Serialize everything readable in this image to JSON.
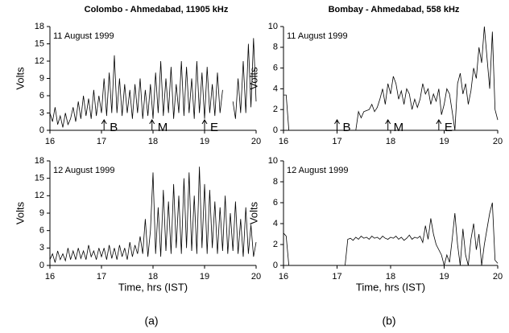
{
  "chart_data": [
    {
      "type": "line",
      "title": "Colombo - Ahmedabad, 11905 kHz",
      "annotation": "11 August 1999",
      "ylabel": "Volts",
      "color": "#000000",
      "markers": [
        {
          "label": "B",
          "x": 17.05
        },
        {
          "label": "M",
          "x": 17.98
        },
        {
          "label": "E",
          "x": 19.0
        }
      ],
      "x": [
        16,
        16.05,
        16.1,
        16.15,
        16.2,
        16.25,
        16.3,
        16.35,
        16.4,
        16.45,
        16.5,
        16.55,
        16.6,
        16.65,
        16.7,
        16.75,
        16.8,
        16.85,
        16.9,
        16.95,
        17,
        17.05,
        17.1,
        17.15,
        17.2,
        17.25,
        17.3,
        17.35,
        17.4,
        17.45,
        17.5,
        17.55,
        17.6,
        17.65,
        17.7,
        17.75,
        17.8,
        17.85,
        17.9,
        17.95,
        18,
        18.05,
        18.1,
        18.15,
        18.2,
        18.25,
        18.3,
        18.35,
        18.4,
        18.45,
        18.5,
        18.55,
        18.6,
        18.65,
        18.7,
        18.75,
        18.8,
        18.85,
        18.9,
        18.95,
        19,
        19.05,
        19.1,
        19.15,
        19.2,
        19.25,
        19.3,
        19.35,
        19.4,
        19.45,
        19.5,
        19.55,
        19.6,
        19.65,
        19.7,
        19.75,
        19.8,
        19.85,
        19.9,
        19.95,
        20
      ],
      "values": [
        3,
        1.5,
        4,
        1,
        2.5,
        0.5,
        3,
        1,
        2,
        4,
        1.5,
        5,
        2,
        6,
        2.5,
        5.5,
        2,
        7,
        2.5,
        6,
        3,
        9,
        2.5,
        10,
        3,
        13,
        3,
        9,
        2.5,
        8,
        3,
        7,
        2,
        8,
        3,
        9,
        2,
        7,
        2.5,
        8,
        2,
        10,
        3,
        12,
        2.5,
        9,
        3,
        11,
        2,
        8,
        3,
        12,
        2.5,
        11,
        3,
        9,
        2,
        12,
        3,
        10,
        2,
        11,
        3,
        8,
        2.5,
        10,
        3,
        7,
        null,
        null,
        null,
        5,
        2,
        9,
        3,
        12,
        3,
        15,
        4,
        16,
        5
      ],
      "xlim": [
        16,
        20
      ],
      "xticks": [
        16,
        17,
        18,
        19,
        20
      ],
      "ylim": [
        0,
        18
      ],
      "yticks": [
        0,
        3,
        6,
        9,
        12,
        15,
        18
      ]
    },
    {
      "type": "line",
      "title": "Bombay - Ahmedabad, 558 kHz",
      "annotation": "11 August 1999",
      "ylabel": "Volts",
      "color": "#000000",
      "markers": [
        {
          "label": "B",
          "x": 17.0
        },
        {
          "label": "M",
          "x": 17.95
        },
        {
          "label": "E",
          "x": 18.9
        }
      ],
      "x": [
        16,
        16.05,
        16.1,
        16.15,
        16.2,
        16.25,
        16.3,
        16.35,
        16.4,
        16.45,
        16.5,
        16.55,
        16.6,
        16.65,
        16.7,
        16.75,
        16.8,
        16.85,
        16.9,
        16.95,
        17,
        17.05,
        17.1,
        17.15,
        17.2,
        17.25,
        17.3,
        17.35,
        17.4,
        17.45,
        17.5,
        17.55,
        17.6,
        17.65,
        17.7,
        17.75,
        17.8,
        17.85,
        17.9,
        17.95,
        18,
        18.05,
        18.1,
        18.15,
        18.2,
        18.25,
        18.3,
        18.35,
        18.4,
        18.45,
        18.5,
        18.55,
        18.6,
        18.65,
        18.7,
        18.75,
        18.8,
        18.85,
        18.9,
        18.95,
        19,
        19.05,
        19.1,
        19.15,
        19.2,
        19.25,
        19.3,
        19.35,
        19.4,
        19.45,
        19.5,
        19.55,
        19.6,
        19.65,
        19.7,
        19.75,
        19.8,
        19.85,
        19.9,
        19.95,
        20
      ],
      "values": [
        3.4,
        3.4,
        0,
        0,
        0,
        0,
        0,
        0,
        0,
        0,
        0,
        0,
        0,
        0,
        0,
        0,
        0,
        0,
        0,
        0,
        0,
        0,
        0,
        0,
        0,
        0,
        0,
        0,
        1.8,
        1.2,
        1.8,
        1.9,
        2,
        2.5,
        1.8,
        2.2,
        3,
        4,
        2.5,
        4.5,
        3.5,
        5.2,
        4.5,
        3,
        3.8,
        2.5,
        4,
        3.5,
        2,
        3,
        2.2,
        3,
        4.5,
        3.5,
        4,
        2.5,
        3.5,
        2.8,
        4,
        1.5,
        2.5,
        4,
        3.5,
        1.8,
        0,
        4.5,
        5.5,
        3.5,
        4.5,
        2.5,
        3.8,
        6,
        5,
        8,
        6.5,
        10,
        7,
        4,
        9.5,
        2,
        1
      ],
      "xlim": [
        16,
        20
      ],
      "xticks": [
        16,
        17,
        18,
        19,
        20
      ],
      "ylim": [
        0,
        10
      ],
      "yticks": [
        0,
        2,
        4,
        6,
        8,
        10
      ]
    },
    {
      "type": "line",
      "annotation": "12 August 1999",
      "ylabel": "Volts",
      "xlabel": "Time, hrs (IST)",
      "caption": "(a)",
      "color": "#000000",
      "x": [
        16,
        16.05,
        16.1,
        16.15,
        16.2,
        16.25,
        16.3,
        16.35,
        16.4,
        16.45,
        16.5,
        16.55,
        16.6,
        16.65,
        16.7,
        16.75,
        16.8,
        16.85,
        16.9,
        16.95,
        17,
        17.05,
        17.1,
        17.15,
        17.2,
        17.25,
        17.3,
        17.35,
        17.4,
        17.45,
        17.5,
        17.55,
        17.6,
        17.65,
        17.7,
        17.75,
        17.8,
        17.85,
        17.9,
        17.95,
        18,
        18.05,
        18.1,
        18.15,
        18.2,
        18.25,
        18.3,
        18.35,
        18.4,
        18.45,
        18.5,
        18.55,
        18.6,
        18.65,
        18.7,
        18.75,
        18.8,
        18.85,
        18.9,
        18.95,
        19,
        19.05,
        19.1,
        19.15,
        19.2,
        19.25,
        19.3,
        19.35,
        19.4,
        19.45,
        19.5,
        19.55,
        19.6,
        19.65,
        19.7,
        19.75,
        19.8,
        19.85,
        19.9,
        19.95,
        20
      ],
      "values": [
        1,
        2,
        0.5,
        2.5,
        1,
        2,
        0.8,
        3,
        1,
        2.5,
        1,
        3,
        1.2,
        2.5,
        1,
        3.5,
        1.5,
        2.5,
        1,
        3,
        1.5,
        3,
        1,
        3.5,
        1.2,
        3,
        1,
        3.5,
        1.5,
        3,
        1,
        4,
        1.5,
        3.5,
        2,
        5,
        2,
        8,
        1.5,
        6,
        16,
        2,
        10,
        1.5,
        13,
        2.5,
        11,
        2,
        14,
        3,
        12,
        2,
        15,
        3,
        16,
        2.5,
        12,
        2,
        17,
        3,
        14,
        2,
        13,
        3,
        11,
        2,
        10,
        2.5,
        12,
        2,
        9,
        2.5,
        11,
        2,
        8,
        1.5,
        10,
        2,
        7,
        1.5,
        4
      ],
      "xlim": [
        16,
        20
      ],
      "xticks": [
        16,
        17,
        18,
        19,
        20
      ],
      "ylim": [
        0,
        18
      ],
      "yticks": [
        0,
        3,
        6,
        9,
        12,
        15,
        18
      ]
    },
    {
      "type": "line",
      "annotation": "12 August 1999",
      "ylabel": "Volts",
      "xlabel": "Time, hrs (IST)",
      "caption": "(b)",
      "color": "#000000",
      "x": [
        16,
        16.05,
        16.1,
        16.15,
        16.2,
        16.25,
        16.3,
        16.35,
        16.4,
        16.45,
        16.5,
        16.55,
        16.6,
        16.65,
        16.7,
        16.75,
        16.8,
        16.85,
        16.9,
        16.95,
        17,
        17.05,
        17.1,
        17.15,
        17.2,
        17.25,
        17.3,
        17.35,
        17.4,
        17.45,
        17.5,
        17.55,
        17.6,
        17.65,
        17.7,
        17.75,
        17.8,
        17.85,
        17.9,
        17.95,
        18,
        18.05,
        18.1,
        18.15,
        18.2,
        18.25,
        18.3,
        18.35,
        18.4,
        18.45,
        18.5,
        18.55,
        18.6,
        18.65,
        18.7,
        18.75,
        18.8,
        18.85,
        18.9,
        18.95,
        19,
        19.05,
        19.1,
        19.15,
        19.2,
        19.25,
        19.3,
        19.35,
        19.4,
        19.45,
        19.5,
        19.55,
        19.6,
        19.65,
        19.7,
        19.75,
        19.8,
        19.85,
        19.9,
        19.95,
        20
      ],
      "values": [
        3.1,
        2.8,
        0,
        null,
        null,
        null,
        null,
        null,
        null,
        null,
        null,
        null,
        null,
        null,
        null,
        null,
        null,
        null,
        null,
        null,
        null,
        null,
        null,
        0,
        2.5,
        2.6,
        2.4,
        2.7,
        2.5,
        2.8,
        2.6,
        2.7,
        2.5,
        2.8,
        2.6,
        2.7,
        2.5,
        2.8,
        2.6,
        2.5,
        2.7,
        2.6,
        2.8,
        2.5,
        2.7,
        2.4,
        2.6,
        2.9,
        2.5,
        2.7,
        2.6,
        2.8,
        2.2,
        3.8,
        2.5,
        4.5,
        3,
        2,
        1.5,
        1,
        0,
        1,
        0.3,
        2.5,
        5,
        2,
        0,
        3.5,
        1,
        0,
        2.5,
        4,
        1.5,
        3,
        0,
        2,
        3.5,
        5,
        6,
        0.5,
        0.2
      ],
      "xlim": [
        16,
        20
      ],
      "xticks": [
        16,
        17,
        18,
        19,
        20
      ],
      "ylim": [
        0,
        10
      ],
      "yticks": [
        0,
        2,
        4,
        6,
        8,
        10
      ]
    }
  ]
}
